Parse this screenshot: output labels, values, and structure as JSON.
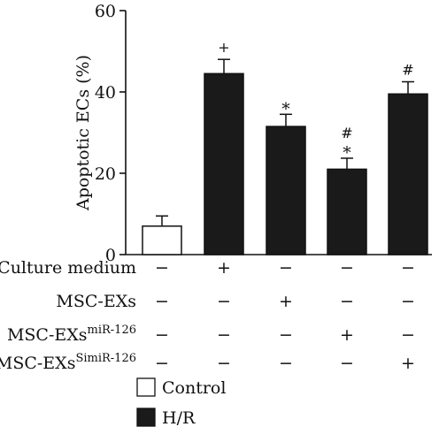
{
  "chart_data": {
    "type": "bar",
    "ylabel": "Apoptotic ECs (%)",
    "ylim": [
      0,
      60
    ],
    "yticks": [
      0,
      20,
      40,
      60
    ],
    "grid": false,
    "bars": [
      {
        "group": "Control",
        "value": 7,
        "error": 2.5,
        "mark": [],
        "color": "#ffffff"
      },
      {
        "group": "H/R",
        "value": 44.5,
        "error": 3.5,
        "mark": [
          "+"
        ],
        "color": "#1a1a1a"
      },
      {
        "group": "H/R",
        "value": 31.5,
        "error": 3,
        "mark": [
          "*"
        ],
        "color": "#1a1a1a"
      },
      {
        "group": "H/R",
        "value": 21,
        "error": 2.7,
        "mark": [
          "#",
          "*"
        ],
        "color": "#1a1a1a"
      },
      {
        "group": "H/R",
        "value": 39.5,
        "error": 3,
        "mark": [
          "#"
        ],
        "color": "#1a1a1a"
      }
    ],
    "condition_table": [
      {
        "label": "Culture medium",
        "sup": "",
        "values": [
          "−",
          "+",
          "−",
          "−",
          "−"
        ]
      },
      {
        "label": "MSC-EXs",
        "sup": "",
        "values": [
          "−",
          "−",
          "+",
          "−",
          "−"
        ]
      },
      {
        "label": "MSC-EXs",
        "sup": "miR-126",
        "values": [
          "−",
          "−",
          "−",
          "+",
          "−"
        ]
      },
      {
        "label": "MSC-EXs",
        "sup": "SimiR-126",
        "values": [
          "−",
          "−",
          "−",
          "−",
          "+"
        ]
      }
    ],
    "legend": [
      {
        "label": "Control",
        "color": "#ffffff"
      },
      {
        "label": "H/R",
        "color": "#1a1a1a"
      }
    ],
    "legend_position": "bottom"
  }
}
